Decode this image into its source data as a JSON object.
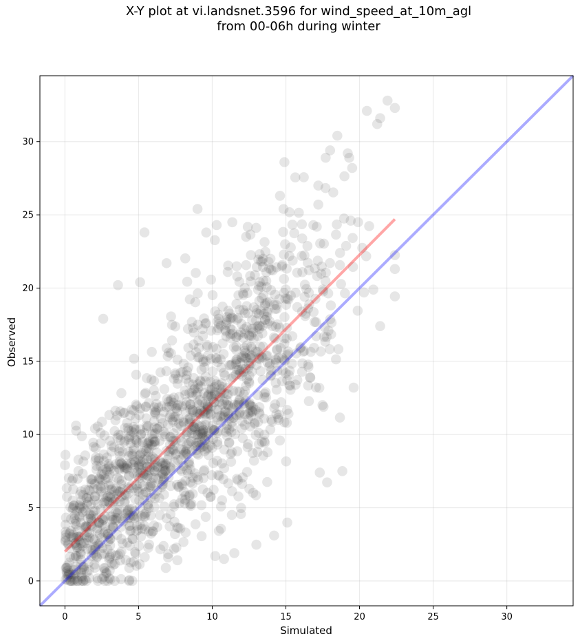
{
  "title": {
    "line1": "X-Y plot at vi.landsnet.3596 for wind_speed_at_10m_agl",
    "line2": "from 00-06h during winter"
  },
  "chart_data": {
    "type": "scatter",
    "title": "X-Y plot at vi.landsnet.3596 for wind_speed_at_10m_agl from 00-06h during winter",
    "xlabel": "Simulated",
    "ylabel": "Observed",
    "xlim": [
      -1.7,
      34.5
    ],
    "ylim": [
      -1.7,
      34.5
    ],
    "xticks": [
      0,
      5,
      10,
      15,
      20,
      25,
      30
    ],
    "yticks": [
      0,
      5,
      10,
      15,
      20,
      25,
      30
    ],
    "grid": true,
    "point_color": "#404040",
    "point_alpha": 0.13,
    "point_count": 1500,
    "approx_points": {
      "generator": "observed ≈ 1.02·simulated + 2.0 with noise, simulated 0–22.5 m/s, observed clipped at 0"
    },
    "notable_points": [
      [
        21.9,
        32.8
      ],
      [
        22.4,
        32.3
      ],
      [
        20.5,
        32.1
      ],
      [
        21.4,
        31.6
      ],
      [
        21.2,
        31.2
      ],
      [
        19.2,
        29.2
      ],
      [
        19.3,
        28.9
      ],
      [
        18.0,
        29.4
      ],
      [
        17.7,
        28.9
      ],
      [
        19.5,
        28.2
      ],
      [
        14.9,
        28.6
      ],
      [
        14.6,
        26.3
      ],
      [
        17.2,
        27.0
      ],
      [
        17.2,
        25.7
      ],
      [
        9.0,
        25.4
      ],
      [
        10.3,
        24.3
      ],
      [
        5.4,
        23.8
      ],
      [
        19.4,
        24.6
      ],
      [
        19.9,
        24.5
      ],
      [
        12.3,
        23.5
      ],
      [
        3.6,
        20.2
      ],
      [
        5.1,
        20.4
      ],
      [
        6.9,
        21.7
      ],
      [
        22.4,
        21.3
      ],
      [
        20.3,
        19.7
      ],
      [
        2.6,
        17.9
      ],
      [
        21.4,
        17.4
      ],
      [
        19.6,
        13.2
      ],
      [
        17.3,
        7.4
      ],
      [
        14.2,
        3.1
      ],
      [
        11.5,
        1.9
      ],
      [
        10.8,
        1.5
      ],
      [
        10.2,
        1.7
      ],
      [
        7.0,
        1.6
      ]
    ],
    "series": [
      {
        "type": "line",
        "points": [
          [
            0,
            2.0
          ],
          [
            22.4,
            24.7
          ]
        ],
        "color": "#ff0000",
        "alpha": 0.35
      },
      {
        "type": "line",
        "points": [
          [
            -1.7,
            -1.7
          ],
          [
            34.5,
            34.5
          ]
        ],
        "color": "#0000ff",
        "alpha": 0.33
      }
    ]
  }
}
